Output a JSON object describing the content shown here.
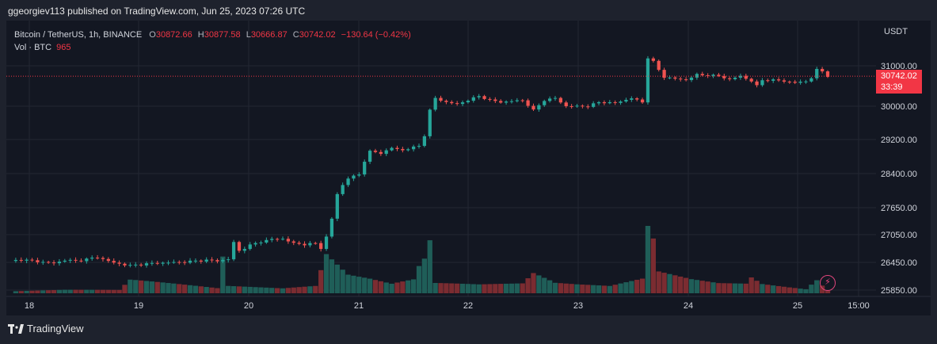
{
  "publisher": "ggeorgiev113 published on TradingView.com, Jun 25, 2023 07:26 UTC",
  "legend": {
    "symbol": "Bitcoin / TetherUS, 1h, BINANCE",
    "open_label": "O",
    "open": "30872.66",
    "high_label": "H",
    "high": "30877.58",
    "low_label": "L",
    "low": "30666.87",
    "close_label": "C",
    "close": "30742.02",
    "change": "−130.64 (−0.42%)",
    "volume_label": "Vol · BTC",
    "volume": "965"
  },
  "price_badge": {
    "price": "30742.02",
    "countdown": "33:39"
  },
  "footer": {
    "brand": "TradingView"
  },
  "icons": {
    "alert": "lightning-icon",
    "logo": "tradingview-logo-icon"
  },
  "colors": {
    "up": "#26a69a",
    "down": "#ef5350",
    "background": "#131722",
    "badge": "#f23645"
  },
  "chart_data": {
    "type": "candlestick",
    "currency": "USDT",
    "y_ticks": [
      "31000.00",
      "30000.00",
      "29200.00",
      "28400.00",
      "27650.00",
      "27050.00",
      "26450.00",
      "25850.00"
    ],
    "x_ticks": [
      "18",
      "19",
      "20",
      "21",
      "22",
      "23",
      "24",
      "25",
      "15:00"
    ],
    "last_price": 30742.02,
    "grid": true,
    "price_path": [
      [
        0,
        26480
      ],
      [
        2,
        26510
      ],
      [
        5,
        26470
      ],
      [
        8,
        26430
      ],
      [
        10,
        26500
      ],
      [
        12,
        26480
      ],
      [
        16,
        26560
      ],
      [
        19,
        26440
      ],
      [
        22,
        26380
      ],
      [
        25,
        26420
      ],
      [
        28,
        26440
      ],
      [
        32,
        26460
      ],
      [
        36,
        26500
      ],
      [
        38,
        26480
      ],
      [
        40,
        26520
      ],
      [
        41,
        26880
      ],
      [
        42,
        26700
      ],
      [
        44,
        26820
      ],
      [
        46,
        26900
      ],
      [
        48,
        26950
      ],
      [
        50,
        26960
      ],
      [
        52,
        26860
      ],
      [
        54,
        26840
      ],
      [
        56,
        26860
      ],
      [
        57,
        26760
      ],
      [
        58,
        27000
      ],
      [
        59,
        27400
      ],
      [
        60,
        27950
      ],
      [
        61,
        28150
      ],
      [
        62,
        28300
      ],
      [
        64,
        28380
      ],
      [
        65,
        28700
      ],
      [
        66,
        28920
      ],
      [
        68,
        28880
      ],
      [
        70,
        29000
      ],
      [
        72,
        28950
      ],
      [
        75,
        29050
      ],
      [
        76,
        29300
      ],
      [
        77,
        29900
      ],
      [
        78,
        30200
      ],
      [
        80,
        30100
      ],
      [
        82,
        30050
      ],
      [
        86,
        30250
      ],
      [
        88,
        30150
      ],
      [
        90,
        30100
      ],
      [
        94,
        30150
      ],
      [
        96,
        29900
      ],
      [
        98,
        30150
      ],
      [
        100,
        30200
      ],
      [
        102,
        30000
      ],
      [
        104,
        30000
      ],
      [
        106,
        30000
      ],
      [
        108,
        30100
      ],
      [
        111,
        30080
      ],
      [
        114,
        30200
      ],
      [
        116,
        30100
      ],
      [
        117,
        31200
      ],
      [
        118,
        31100
      ],
      [
        119,
        30900
      ],
      [
        120,
        30720
      ],
      [
        122,
        30680
      ],
      [
        124,
        30650
      ],
      [
        126,
        30780
      ],
      [
        130,
        30750
      ],
      [
        132,
        30660
      ],
      [
        134,
        30750
      ],
      [
        136,
        30620
      ],
      [
        137,
        30500
      ],
      [
        138,
        30650
      ],
      [
        141,
        30640
      ],
      [
        144,
        30580
      ],
      [
        146,
        30620
      ],
      [
        147,
        30700
      ],
      [
        148,
        30900
      ],
      [
        149,
        30870
      ],
      [
        150,
        30742
      ]
    ],
    "volume_path": [
      [
        0,
        8
      ],
      [
        10,
        12
      ],
      [
        20,
        10
      ],
      [
        22,
        40
      ],
      [
        38,
        14
      ],
      [
        39,
        100
      ],
      [
        40,
        20
      ],
      [
        50,
        14
      ],
      [
        56,
        22
      ],
      [
        57,
        70
      ],
      [
        58,
        120
      ],
      [
        62,
        60
      ],
      [
        66,
        50
      ],
      [
        70,
        35
      ],
      [
        74,
        55
      ],
      [
        75,
        110
      ],
      [
        76,
        140
      ],
      [
        77,
        210
      ],
      [
        78,
        40
      ],
      [
        86,
        30
      ],
      [
        94,
        30
      ],
      [
        96,
        60
      ],
      [
        100,
        30
      ],
      [
        104,
        25
      ],
      [
        110,
        20
      ],
      [
        116,
        40
      ],
      [
        117,
        210
      ],
      [
        118,
        150
      ],
      [
        119,
        60
      ],
      [
        125,
        40
      ],
      [
        130,
        30
      ],
      [
        135,
        30
      ],
      [
        136,
        50
      ],
      [
        138,
        30
      ],
      [
        146,
        15
      ],
      [
        148,
        50
      ],
      [
        150,
        10
      ]
    ],
    "volume_max": 220
  }
}
